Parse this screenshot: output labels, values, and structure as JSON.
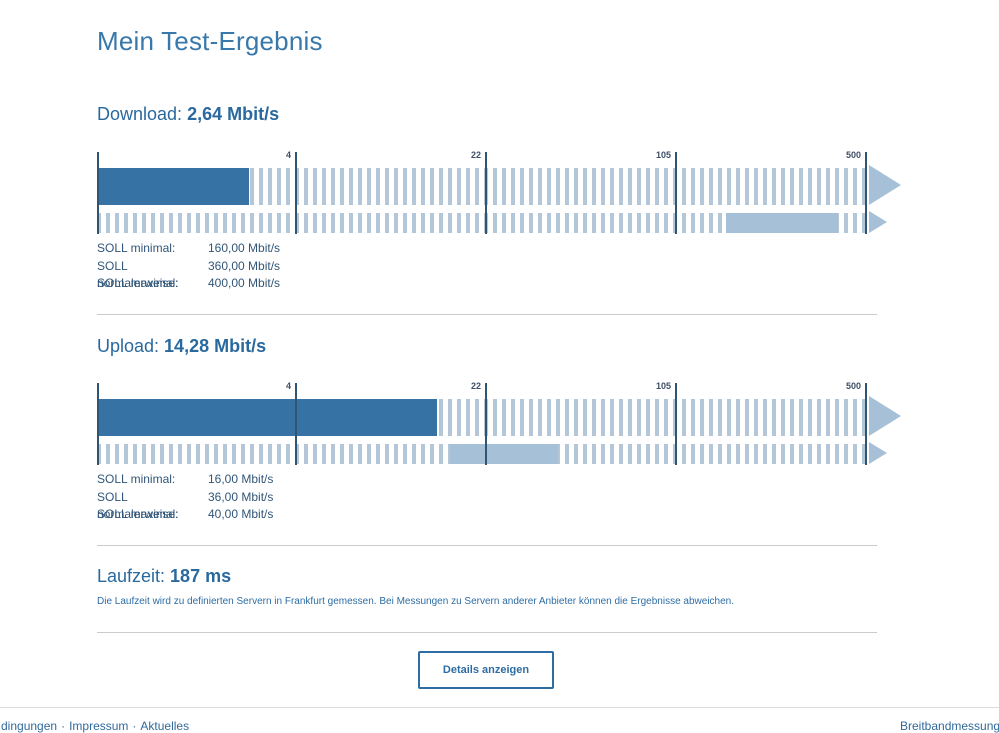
{
  "title": "Mein Test-Ergebnis",
  "sections": {
    "download": {
      "label": "Download: ",
      "value": "2,64 Mbit/s",
      "soll_rows": [
        {
          "label": "SOLL minimal:",
          "value": "160,00 Mbit/s"
        },
        {
          "label": "SOLL normalerweise:",
          "value": "360,00 Mbit/s"
        },
        {
          "label": "SOLL maximal:",
          "value": "400,00 Mbit/s"
        }
      ]
    },
    "upload": {
      "label": "Upload: ",
      "value": "14,28 Mbit/s",
      "soll_rows": [
        {
          "label": "SOLL minimal:",
          "value": "16,00 Mbit/s"
        },
        {
          "label": "SOLL normalerweise:",
          "value": "36,00 Mbit/s"
        },
        {
          "label": "SOLL maximal:",
          "value": "40,00 Mbit/s"
        }
      ]
    }
  },
  "chart_data": [
    {
      "type": "bar",
      "name": "download-gauge",
      "title": "Download: 2,64 Mbit/s",
      "unit": "Mbit/s",
      "scale": "log",
      "axis_ticks": [
        4,
        22,
        105,
        500
      ],
      "measured_value": 2.64,
      "soll_minimal": 160.0,
      "soll_normalerweise": 360.0,
      "soll_maximal": 400.0,
      "band_range": [
        160.0,
        400.0
      ],
      "layout_hint": "solid dark bar = measured value on log scale; striped rail to 500+; lower thin row shows SOLL min-max band"
    },
    {
      "type": "bar",
      "name": "upload-gauge",
      "title": "Upload: 14,28 Mbit/s",
      "unit": "Mbit/s",
      "scale": "log",
      "axis_ticks": [
        4,
        22,
        105,
        500
      ],
      "measured_value": 14.28,
      "soll_minimal": 16.0,
      "soll_normalerweise": 36.0,
      "soll_maximal": 40.0,
      "band_range": [
        16.0,
        40.0
      ],
      "layout_hint": "solid dark bar = measured value on log scale; striped rail to 500+; lower thin row shows SOLL min-max band"
    }
  ],
  "latency": {
    "label": "Laufzeit: ",
    "value": "187 ms",
    "note": "Die Laufzeit wird zu definierten Servern in Frankfurt gemessen. Bei Messungen zu Servern anderer Anbieter können die Ergebnisse abweichen."
  },
  "details_button": "Details anzeigen",
  "footer": {
    "links": [
      "dingungen",
      "Impressum",
      "Aktuelles"
    ],
    "separator": "·",
    "right": "Breitbandmessung t"
  },
  "colors": {
    "heading_blue": "#3878aa",
    "text_blue": "#29699e",
    "bar_fill": "#3672a3",
    "stripe": "#b3c7d9",
    "band": "#a6c0d8",
    "tick": "#2f5573",
    "divider": "#cbcbcb",
    "button_blue": "#2e6da4"
  }
}
